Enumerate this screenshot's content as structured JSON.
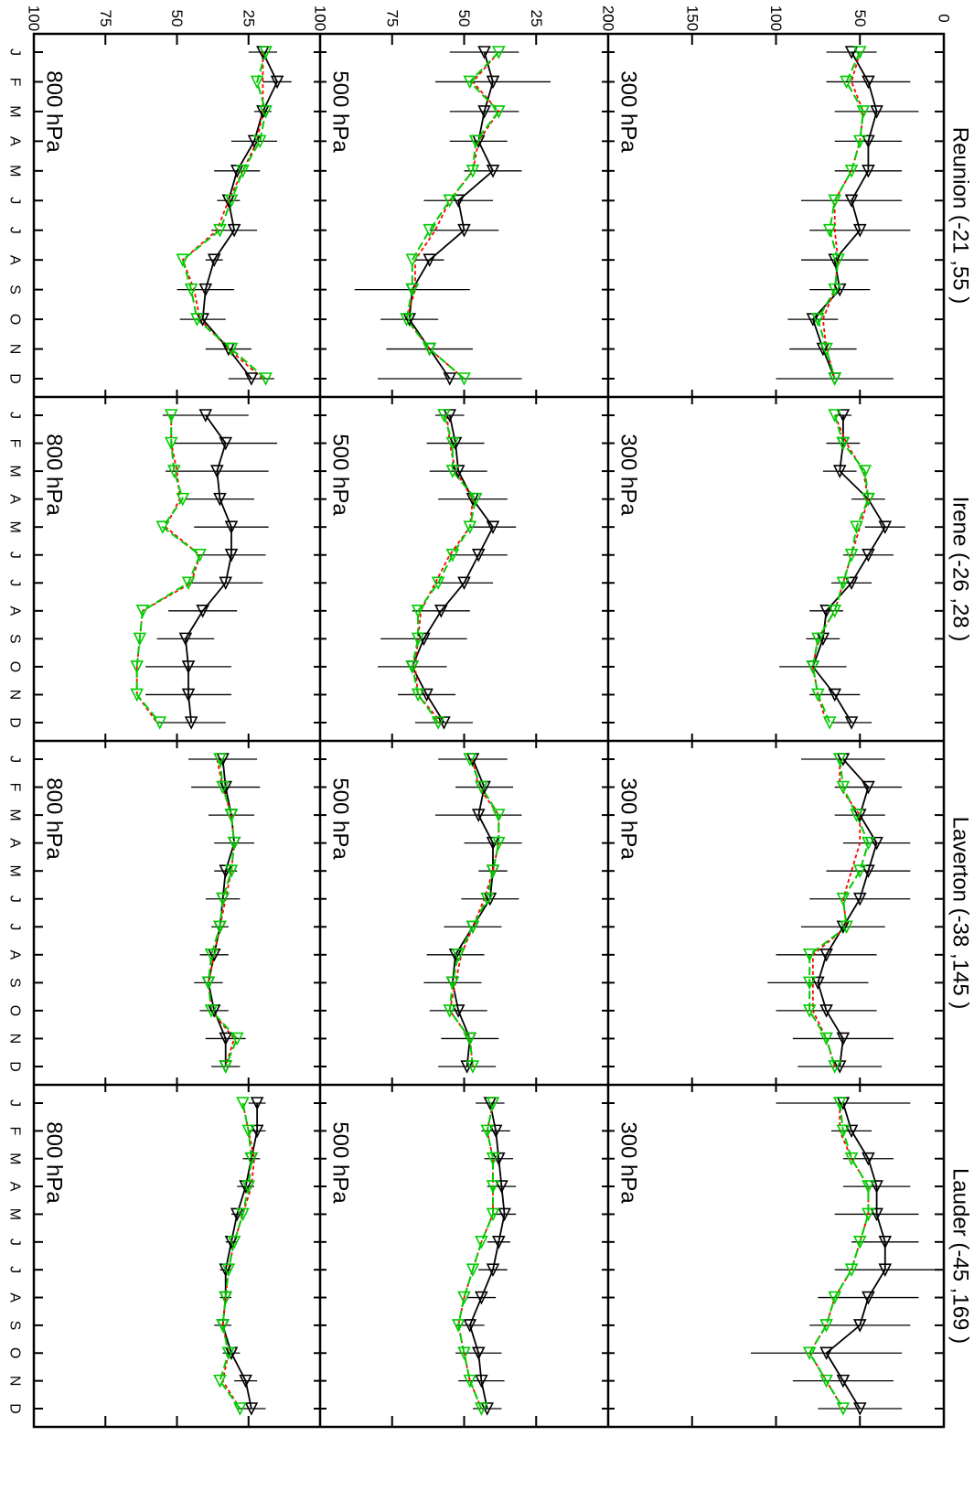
{
  "figure": {
    "stations": [
      {
        "name": "Reunion (-21 ,55 )"
      },
      {
        "name": "Irene (-26 ,28 )"
      },
      {
        "name": "Laverton (-38 ,145 )"
      },
      {
        "name": "Lauder (-45 ,169 )"
      }
    ],
    "pressure_levels": [
      "300 hPa",
      "500 hPa",
      "800 hPa"
    ],
    "month_labels": [
      "J",
      "F",
      "M",
      "A",
      "M",
      "J",
      "J",
      "A",
      "S",
      "O",
      "N",
      "D"
    ],
    "colors": {
      "observed": "#000000",
      "model_red": "#ff0000",
      "model_green": "#00cc00",
      "axis": "#000000"
    }
  },
  "chart_data": {
    "type": "line",
    "x": [
      "J",
      "F",
      "M",
      "A",
      "M",
      "J",
      "J",
      "A",
      "S",
      "O",
      "N",
      "D"
    ],
    "axes": {
      "300 hPa": {
        "ylim": [
          0,
          200
        ],
        "ticks": [
          0,
          50,
          100,
          150,
          200
        ]
      },
      "500 hPa": {
        "ylim": [
          0,
          100
        ],
        "ticks": [
          0,
          25,
          50,
          75,
          100
        ]
      },
      "800 hPa": {
        "ylim": [
          0,
          100
        ],
        "ticks": [
          0,
          25,
          50,
          75,
          100
        ]
      }
    },
    "panels": [
      {
        "station": "Reunion (-21 ,55 )",
        "level": "300 hPa",
        "observed": [
          55,
          45,
          40,
          45,
          45,
          55,
          50,
          65,
          62,
          78,
          72,
          65
        ],
        "obs_err": [
          15,
          25,
          25,
          20,
          20,
          30,
          30,
          20,
          18,
          15,
          20,
          35
        ],
        "model_red": [
          50,
          55,
          48,
          50,
          55,
          65,
          65,
          63,
          65,
          72,
          70,
          65
        ],
        "model_green": [
          50,
          58,
          48,
          50,
          55,
          65,
          68,
          63,
          65,
          75,
          70,
          65
        ]
      },
      {
        "station": "Reunion (-21 ,55 )",
        "level": "500 hPa",
        "observed": [
          43,
          40,
          43,
          45,
          40,
          52,
          50,
          62,
          68,
          69,
          62,
          55
        ],
        "obs_err": [
          12,
          20,
          12,
          10,
          10,
          12,
          12,
          5,
          20,
          10,
          15,
          25
        ],
        "model_red": [
          38,
          47,
          38,
          45,
          47,
          55,
          60,
          67,
          67,
          70,
          62,
          50
        ],
        "model_green": [
          38,
          48,
          38,
          46,
          47,
          55,
          62,
          68,
          68,
          70,
          62,
          50
        ]
      },
      {
        "station": "Reunion (-21 ,55 )",
        "level": "800 hPa",
        "observed": [
          20,
          15,
          20,
          23,
          29,
          32,
          30,
          37,
          40,
          41,
          32,
          24
        ],
        "obs_err": [
          5,
          5,
          3,
          8,
          8,
          4,
          8,
          3,
          10,
          8,
          8,
          8
        ],
        "model_red": [
          20,
          20,
          20,
          22,
          27,
          32,
          36,
          48,
          44,
          42,
          32,
          20
        ],
        "model_green": [
          19,
          22,
          19,
          21,
          27,
          31,
          35,
          48,
          45,
          43,
          31,
          19
        ]
      },
      {
        "station": "Irene (-26 ,28 )",
        "level": "300 hPa",
        "observed": [
          60,
          60,
          62,
          45,
          35,
          45,
          55,
          70,
          72,
          78,
          65,
          55
        ],
        "obs_err": [
          5,
          10,
          10,
          10,
          12,
          15,
          12,
          10,
          10,
          20,
          15,
          12
        ],
        "model_red": [
          65,
          58,
          48,
          45,
          50,
          55,
          60,
          65,
          75,
          78,
          75,
          70
        ],
        "model_green": [
          65,
          60,
          47,
          45,
          52,
          55,
          60,
          65,
          75,
          78,
          75,
          68
        ]
      },
      {
        "station": "Irene (-26 ,28 )",
        "level": "500 hPa",
        "observed": [
          55,
          53,
          52,
          47,
          40,
          45,
          50,
          58,
          64,
          68,
          63,
          57
        ],
        "obs_err": [
          5,
          10,
          10,
          12,
          8,
          10,
          10,
          10,
          15,
          12,
          10,
          10
        ],
        "model_red": [
          56,
          55,
          53,
          47,
          48,
          55,
          60,
          65,
          66,
          67,
          66,
          58
        ],
        "model_green": [
          57,
          54,
          54,
          46,
          48,
          54,
          59,
          66,
          66,
          68,
          66,
          59
        ]
      },
      {
        "station": "Irene (-26 ,28 )",
        "level": "800 hPa",
        "observed": [
          40,
          33,
          36,
          35,
          31,
          31,
          33,
          41,
          47,
          46,
          46,
          45
        ],
        "obs_err": [
          15,
          18,
          18,
          12,
          13,
          12,
          13,
          12,
          10,
          15,
          15,
          12
        ],
        "model_red": [
          52,
          52,
          50,
          49,
          54,
          42,
          45,
          62,
          63,
          64,
          64,
          57
        ],
        "model_green": [
          52,
          52,
          51,
          48,
          55,
          42,
          46,
          62,
          63,
          64,
          64,
          56
        ]
      },
      {
        "station": "Laverton (-38 ,145 )",
        "level": "300 hPa",
        "observed": [
          60,
          45,
          50,
          40,
          45,
          50,
          60,
          70,
          75,
          70,
          60,
          62
        ],
        "obs_err": [
          25,
          20,
          15,
          20,
          25,
          30,
          25,
          30,
          30,
          30,
          30,
          25
        ],
        "model_red": [
          62,
          62,
          50,
          50,
          55,
          60,
          58,
          78,
          78,
          78,
          70,
          65
        ],
        "model_green": [
          62,
          60,
          52,
          45,
          50,
          60,
          58,
          80,
          80,
          80,
          70,
          65
        ]
      },
      {
        "station": "Laverton (-38 ,145 )",
        "level": "500 hPa",
        "observed": [
          47,
          43,
          45,
          40,
          40,
          41,
          47,
          53,
          54,
          52,
          48,
          49
        ],
        "obs_err": [
          12,
          10,
          15,
          10,
          5,
          10,
          10,
          10,
          10,
          10,
          10,
          10
        ],
        "model_red": [
          47,
          45,
          38,
          38,
          40,
          43,
          47,
          51,
          53,
          55,
          48,
          47
        ],
        "model_green": [
          48,
          44,
          38,
          38,
          40,
          42,
          47,
          52,
          54,
          55,
          48,
          47
        ]
      },
      {
        "station": "Laverton (-38 ,145 )",
        "level": "800 hPa",
        "observed": [
          34,
          33,
          31,
          30,
          33,
          34,
          35,
          37,
          39,
          37,
          33,
          33
        ],
        "obs_err": [
          12,
          12,
          8,
          7,
          4,
          6,
          3,
          5,
          5,
          5,
          7,
          5
        ],
        "model_red": [
          36,
          34,
          31,
          30,
          31,
          33,
          35,
          37,
          39,
          38,
          30,
          33
        ],
        "model_green": [
          35,
          34,
          31,
          30,
          31,
          34,
          35,
          38,
          39,
          38,
          29,
          33
        ]
      },
      {
        "station": "Lauder (-45 ,169 )",
        "level": "300 hPa",
        "observed": [
          60,
          55,
          45,
          40,
          40,
          35,
          35,
          45,
          50,
          70,
          60,
          50
        ],
        "obs_err": [
          40,
          12,
          15,
          20,
          25,
          20,
          30,
          30,
          30,
          45,
          30,
          25
        ],
        "model_red": [
          62,
          62,
          55,
          45,
          45,
          50,
          55,
          65,
          70,
          80,
          70,
          60
        ],
        "model_green": [
          62,
          60,
          55,
          45,
          45,
          50,
          55,
          65,
          70,
          80,
          70,
          60
        ]
      },
      {
        "station": "Lauder (-45 ,169 )",
        "level": "500 hPa",
        "observed": [
          41,
          39,
          38,
          37,
          36,
          38,
          40,
          44,
          48,
          45,
          44,
          42
        ],
        "obs_err": [
          5,
          5,
          5,
          5,
          4,
          4,
          5,
          5,
          5,
          8,
          8,
          5
        ],
        "model_red": [
          40,
          42,
          40,
          40,
          40,
          44,
          47,
          50,
          52,
          50,
          48,
          44
        ],
        "model_green": [
          40,
          42,
          40,
          40,
          40,
          44,
          47,
          50,
          52,
          50,
          48,
          44
        ]
      },
      {
        "station": "Lauder (-45 ,169 )",
        "level": "800 hPa",
        "observed": [
          22,
          22,
          24,
          26,
          29,
          31,
          33,
          33,
          34,
          31,
          26,
          24
        ],
        "obs_err": [
          3,
          3,
          3,
          3,
          2,
          2,
          2,
          2,
          3,
          3,
          4,
          5
        ],
        "model_red": [
          27,
          25,
          23,
          24,
          27,
          30,
          32,
          33,
          34,
          32,
          34,
          28
        ],
        "model_green": [
          27,
          25,
          24,
          25,
          27,
          30,
          32,
          33,
          34,
          32,
          35,
          28
        ]
      }
    ]
  }
}
